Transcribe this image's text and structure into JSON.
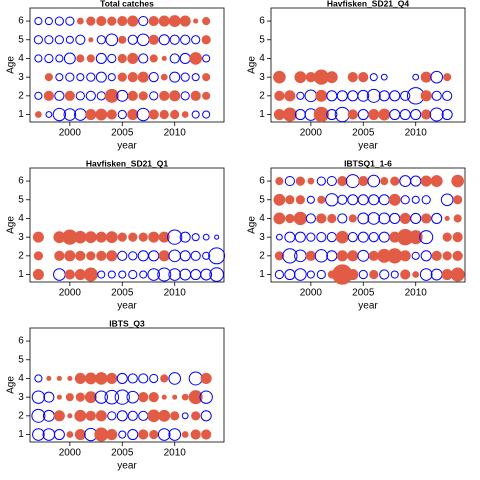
{
  "chart_data": [
    {
      "type": "bubble",
      "title": "Total catches",
      "xlabel": "year",
      "ylabel": "Age",
      "x": [
        1997,
        1998,
        1999,
        2000,
        2001,
        2002,
        2003,
        2004,
        2005,
        2006,
        2007,
        2008,
        2009,
        2010,
        2011,
        2012,
        2013
      ],
      "ages": [
        1,
        2,
        3,
        4,
        5,
        6
      ],
      "values": [
        [
          0.2,
          -0.2,
          -0.9,
          -0.8,
          -0.8,
          0.6,
          0.7,
          0.5,
          -0.4,
          0.6,
          -0.9,
          0.5,
          0.4,
          0.4,
          0.2,
          -0.3,
          -0.3
        ],
        [
          -0.3,
          0.5,
          -0.5,
          0.5,
          -0.4,
          -0.5,
          -0.4,
          1.0,
          -0.7,
          0.5,
          0.4,
          -0.4,
          0.5,
          0.6,
          -0.4,
          0.5,
          0.3
        ],
        [
          0,
          0.3,
          -0.3,
          -0.4,
          -0.3,
          -0.4,
          -0.6,
          -0.3,
          0.4,
          0.5,
          0.6,
          -0.5,
          0.2,
          -0.6,
          -0.4,
          -0.3,
          0.3
        ],
        [
          -0.3,
          -0.4,
          -0.3,
          -0.7,
          0.3,
          0.3,
          -0.6,
          -0.4,
          0.4,
          0.6,
          -0.5,
          0.3,
          0.1,
          -0.5,
          -0.6,
          0.8,
          -0.3
        ],
        [
          -0.4,
          -0.4,
          -0.4,
          -0.3,
          -0.5,
          0.1,
          -0.4,
          -0.8,
          0.3,
          -0.5,
          -0.8,
          0.5,
          -0.6,
          -0.5,
          -0.5,
          -0.4,
          0.4
        ],
        [
          -0.3,
          -0.3,
          -0.4,
          -0.4,
          0.2,
          0.4,
          0.5,
          0.4,
          0.5,
          0.6,
          -0.5,
          0.5,
          0.6,
          0.7,
          0.6,
          0.1,
          0.3
        ]
      ],
      "xlim": [
        1996.2,
        2014.7
      ],
      "xticks": [
        2000,
        2005,
        2010
      ],
      "ylim": [
        0.6,
        6.7
      ],
      "yticks": [
        1,
        2,
        3,
        4,
        5,
        6
      ],
      "positive_color": "#e25c45",
      "negative_color": "#0000ff"
    },
    {
      "type": "bubble",
      "title": "Havfisken_SD21_Q4",
      "xlabel": "year",
      "ylabel": "Age",
      "x": [
        1997,
        1998,
        1999,
        2000,
        2001,
        2002,
        2003,
        2004,
        2005,
        2006,
        2007,
        2008,
        2009,
        2010,
        2011,
        2012,
        2013
      ],
      "ages": [
        1,
        2,
        3
      ],
      "values": [
        [
          0.6,
          1.0,
          -0.6,
          -0.8,
          1.2,
          -0.6,
          -1.2,
          0.5,
          -0.6,
          0.6,
          0.7,
          -0.6,
          -0.6,
          -0.6,
          0.5,
          -1.0,
          -0.6
        ],
        [
          0.5,
          0.6,
          -0.3,
          -0.8,
          0.7,
          -0.6,
          -0.6,
          -0.6,
          -0.7,
          -1.0,
          -0.6,
          -0.6,
          -0.5,
          -1.6,
          0.6,
          -0.5,
          -0.5
        ],
        [
          0.8,
          0,
          0.7,
          0.5,
          1.2,
          0.7,
          0,
          0.5,
          0.5,
          -0.3,
          -0.2,
          0,
          0,
          -0.2,
          0.6,
          -0.8,
          0.3
        ]
      ],
      "xlim": [
        1996.2,
        2014.7
      ],
      "xticks": [
        2000,
        2005,
        2010
      ],
      "ylim": [
        0.6,
        6.7
      ],
      "yticks": [
        1,
        2,
        3,
        4,
        5,
        6
      ],
      "positive_color": "#e25c45",
      "negative_color": "#0000ff"
    },
    {
      "type": "bubble",
      "title": "Havfisken_SD21_Q1",
      "xlabel": "year",
      "ylabel": "Age",
      "x": [
        1997,
        1998,
        1999,
        2000,
        2001,
        2002,
        2003,
        2004,
        2005,
        2006,
        2007,
        2008,
        2009,
        2010,
        2011,
        2012,
        2013,
        2014
      ],
      "ages": [
        1,
        2,
        3
      ],
      "values": [
        [
          0.6,
          0,
          -0.8,
          0.5,
          0.6,
          1.0,
          -0.3,
          -0.3,
          -0.3,
          -0.4,
          -0.3,
          -0.8,
          -1.0,
          -0.8,
          -0.7,
          -0.6,
          -0.7,
          -1.1
        ],
        [
          0.4,
          0,
          0.5,
          0.6,
          0.5,
          0.4,
          0.5,
          0.6,
          -0.5,
          -0.4,
          -0.6,
          -0.6,
          0.6,
          -0.8,
          -0.6,
          -0.5,
          -0.3,
          -1.5
        ],
        [
          0.6,
          0,
          0.7,
          1.2,
          0.8,
          0.7,
          0.6,
          0.7,
          0.4,
          0.4,
          0.4,
          0.6,
          0.6,
          -1.2,
          -0.6,
          -0.3,
          -0.2,
          -0.1
        ]
      ],
      "xlim": [
        1996.2,
        2014.7
      ],
      "xticks": [
        2000,
        2005,
        2010
      ],
      "ylim": [
        0.6,
        6.7
      ],
      "yticks": [
        1,
        2,
        3,
        4,
        5,
        6
      ],
      "positive_color": "#e25c45",
      "negative_color": "#0000ff"
    },
    {
      "type": "bubble",
      "title": "IBTSQ1_1-6",
      "xlabel": "year",
      "ylabel": "Age",
      "x": [
        1997,
        1998,
        1999,
        2000,
        2001,
        2002,
        2003,
        2004,
        2005,
        2006,
        2007,
        2008,
        2009,
        2010,
        2011,
        2012,
        2013,
        2014
      ],
      "ages": [
        1,
        2,
        3,
        4,
        5,
        6
      ],
      "values": [
        [
          -0.4,
          -0.6,
          -0.8,
          -0.3,
          -0.4,
          0.3,
          2.2,
          0.6,
          -0.4,
          0.4,
          -0.5,
          -0.3,
          0.5,
          0.2,
          -0.8,
          -0.7,
          0.6,
          1.0
        ],
        [
          0.4,
          -1.2,
          -0.8,
          0.5,
          -0.9,
          -0.6,
          0.6,
          0.6,
          -0.7,
          0.5,
          1.0,
          1.2,
          0.6,
          -0.3,
          -0.6,
          0.5,
          0.4,
          0.5
        ],
        [
          -0.2,
          -0.6,
          -0.6,
          -0.4,
          -0.5,
          -0.5,
          0.8,
          -0.5,
          -0.6,
          -0.5,
          -0.6,
          0.6,
          1.4,
          1.0,
          -1.0,
          0,
          0.4,
          0.5
        ],
        [
          0.7,
          0.4,
          0.9,
          -0.5,
          0.5,
          0.4,
          -0.5,
          0.3,
          -0.7,
          -0.8,
          -0.7,
          -0.6,
          0.6,
          -0.6,
          0.5,
          -0.6,
          0.1,
          0.3
        ],
        [
          0.7,
          0.4,
          0.4,
          -0.3,
          0.3,
          -0.9,
          -0.5,
          -0.6,
          -0.6,
          -0.6,
          -0.6,
          0.7,
          -0.4,
          -0.3,
          -0.4,
          0,
          -0.8,
          0.4
        ],
        [
          0.3,
          -0.5,
          0.4,
          0.2,
          -0.4,
          -0.5,
          0.5,
          -1.0,
          0.5,
          -0.8,
          0.3,
          0.4,
          -0.7,
          -0.6,
          0.6,
          0.7,
          0,
          0.8
        ]
      ],
      "xlim": [
        1996.2,
        2014.7
      ],
      "xticks": [
        2000,
        2005,
        2010
      ],
      "ylim": [
        0.6,
        6.7
      ],
      "yticks": [
        1,
        2,
        3,
        4,
        5,
        6
      ],
      "positive_color": "#e25c45",
      "negative_color": "#0000ff"
    },
    {
      "type": "bubble",
      "title": "IBTS_Q3",
      "xlabel": "year",
      "ylabel": "Age",
      "x": [
        1997,
        1998,
        1999,
        2000,
        2001,
        2002,
        2003,
        2004,
        2005,
        2006,
        2007,
        2008,
        2009,
        2010,
        2011,
        2012,
        2013
      ],
      "ages": [
        1,
        2,
        3,
        4
      ],
      "values": [
        [
          -0.8,
          -0.8,
          -0.6,
          0.2,
          0.6,
          -0.9,
          1.0,
          0.6,
          -0.3,
          -0.6,
          0.5,
          0.4,
          -0.8,
          -0.8,
          0.2,
          0.5,
          0.5
        ],
        [
          -1.0,
          -0.7,
          0.6,
          0.1,
          0.7,
          0.5,
          0.6,
          -0.4,
          -0.6,
          -0.5,
          -0.5,
          0.8,
          0.7,
          0.4,
          -0.2,
          0.4,
          -0.6
        ],
        [
          -0.9,
          -0.6,
          0.1,
          0.3,
          0.4,
          0.7,
          -0.9,
          -1.1,
          -1.2,
          -0.8,
          0.5,
          0.5,
          0.1,
          0.1,
          0.2,
          1.0,
          -0.9
        ],
        [
          -0.3,
          0.1,
          0.1,
          0.1,
          0.6,
          0.7,
          0.8,
          0.6,
          -0.6,
          -0.5,
          -0.5,
          -0.4,
          0.3,
          -0.8,
          0,
          -1.0,
          0.6
        ]
      ],
      "xlim": [
        1996.2,
        2014.7
      ],
      "xticks": [
        2000,
        2005,
        2010
      ],
      "ylim": [
        0.6,
        6.7
      ],
      "yticks": [
        1,
        2,
        3,
        4,
        5,
        6
      ],
      "positive_color": "#e25c45",
      "negative_color": "#0000ff"
    }
  ]
}
